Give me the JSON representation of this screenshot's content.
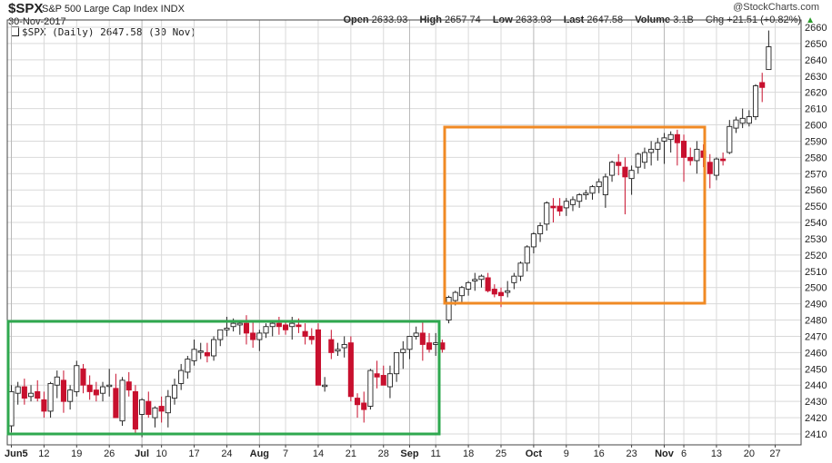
{
  "header": {
    "symbol": "$SPX",
    "name": "S&P 500 Large Cap Index  INDX",
    "date": "30-Nov-2017",
    "brand": "@StockCharts.com",
    "open_label": "Open",
    "open": "2633.93",
    "high_label": "High",
    "high": "2657.74",
    "low_label": "Low",
    "low": "2633.93",
    "last_label": "Last",
    "last": "2647.58",
    "volume_label": "Volume",
    "volume": "3.1B",
    "change": "Chg +21.51 (+0.82%)",
    "change_icon": "triangle-up-icon",
    "change_color": "#2a9d2a"
  },
  "legend": {
    "text": "$SPX (Daily) 2647.58 (30 Nov)",
    "icon": "candlestick-icon"
  },
  "colors": {
    "up": "#ffffff",
    "up_border": "#222222",
    "down": "#c8102e",
    "grid": "#d9d9d9",
    "green_box": "#2fa84f",
    "orange_box": "#f08a24"
  },
  "chart_data": {
    "type": "candlestick",
    "ylim": [
      2405,
      2665
    ],
    "y_ticks": [
      2410,
      2420,
      2430,
      2440,
      2450,
      2460,
      2470,
      2480,
      2490,
      2500,
      2510,
      2520,
      2530,
      2540,
      2550,
      2560,
      2570,
      2580,
      2590,
      2600,
      2610,
      2620,
      2630,
      2640,
      2650,
      2660
    ],
    "x_tick_labels": [
      {
        "label": "Jun5",
        "idx": 0,
        "major": true
      },
      {
        "label": "12",
        "idx": 5
      },
      {
        "label": "19",
        "idx": 10
      },
      {
        "label": "26",
        "idx": 15
      },
      {
        "label": "Jul",
        "idx": 20,
        "major": true
      },
      {
        "label": "10",
        "idx": 23
      },
      {
        "label": "17",
        "idx": 28
      },
      {
        "label": "24",
        "idx": 33
      },
      {
        "label": "Aug",
        "idx": 38,
        "major": true
      },
      {
        "label": "7",
        "idx": 42
      },
      {
        "label": "14",
        "idx": 47
      },
      {
        "label": "21",
        "idx": 52
      },
      {
        "label": "28",
        "idx": 57
      },
      {
        "label": "Sep",
        "idx": 61,
        "major": true
      },
      {
        "label": "11",
        "idx": 65
      },
      {
        "label": "18",
        "idx": 70
      },
      {
        "label": "25",
        "idx": 75
      },
      {
        "label": "Oct",
        "idx": 80,
        "major": true
      },
      {
        "label": "9",
        "idx": 85
      },
      {
        "label": "16",
        "idx": 90
      },
      {
        "label": "23",
        "idx": 95
      },
      {
        "label": "Nov",
        "idx": 100,
        "major": true
      },
      {
        "label": "6",
        "idx": 103
      },
      {
        "label": "13",
        "idx": 108
      },
      {
        "label": "20",
        "idx": 113
      },
      {
        "label": "27",
        "idx": 117
      }
    ],
    "ohlc": [
      [
        2415,
        2440,
        2411,
        2436
      ],
      [
        2435,
        2442,
        2428,
        2439
      ],
      [
        2439,
        2444,
        2428,
        2432
      ],
      [
        2433,
        2440,
        2430,
        2435
      ],
      [
        2436,
        2443,
        2430,
        2432
      ],
      [
        2431,
        2436,
        2420,
        2424
      ],
      [
        2424,
        2442,
        2420,
        2441
      ],
      [
        2440,
        2449,
        2432,
        2445
      ],
      [
        2443,
        2449,
        2423,
        2430
      ],
      [
        2430,
        2440,
        2425,
        2437
      ],
      [
        2436,
        2455,
        2433,
        2452
      ],
      [
        2450,
        2453,
        2435,
        2440
      ],
      [
        2440,
        2446,
        2431,
        2436
      ],
      [
        2437,
        2442,
        2430,
        2434
      ],
      [
        2435,
        2442,
        2430,
        2439
      ],
      [
        2440,
        2450,
        2433,
        2440
      ],
      [
        2438,
        2447,
        2420,
        2420
      ],
      [
        2418,
        2445,
        2415,
        2443
      ],
      [
        2442,
        2448,
        2433,
        2437
      ],
      [
        2436,
        2440,
        2410,
        2413
      ],
      [
        2422,
        2432,
        2408,
        2431
      ],
      [
        2430,
        2436,
        2420,
        2422
      ],
      [
        2420,
        2427,
        2414,
        2426
      ],
      [
        2427,
        2433,
        2417,
        2424
      ],
      [
        2423,
        2437,
        2414,
        2433
      ],
      [
        2432,
        2444,
        2428,
        2440
      ],
      [
        2441,
        2453,
        2437,
        2449
      ],
      [
        2448,
        2458,
        2444,
        2456
      ],
      [
        2455,
        2468,
        2452,
        2462
      ],
      [
        2461,
        2466,
        2456,
        2461
      ],
      [
        2460,
        2466,
        2454,
        2458
      ],
      [
        2458,
        2470,
        2455,
        2468
      ],
      [
        2468,
        2474,
        2464,
        2474
      ],
      [
        2474,
        2482,
        2470,
        2475
      ],
      [
        2476,
        2481,
        2473,
        2478
      ],
      [
        2477,
        2480,
        2471,
        2478
      ],
      [
        2478,
        2483,
        2465,
        2472
      ],
      [
        2472,
        2480,
        2463,
        2468
      ],
      [
        2468,
        2474,
        2461,
        2472
      ],
      [
        2472,
        2478,
        2469,
        2476
      ],
      [
        2476,
        2480,
        2470,
        2478
      ],
      [
        2478,
        2482,
        2471,
        2476
      ],
      [
        2477,
        2480,
        2471,
        2474
      ],
      [
        2476,
        2482,
        2468,
        2478
      ],
      [
        2477,
        2481,
        2472,
        2476
      ],
      [
        2473,
        2478,
        2465,
        2470
      ],
      [
        2470,
        2475,
        2465,
        2468
      ],
      [
        2474,
        2478,
        2440,
        2440
      ],
      [
        2440,
        2445,
        2436,
        2440
      ],
      [
        2468,
        2474,
        2456,
        2460
      ],
      [
        2461,
        2466,
        2458,
        2462
      ],
      [
        2463,
        2470,
        2457,
        2465
      ],
      [
        2466,
        2470,
        2430,
        2433
      ],
      [
        2432,
        2435,
        2420,
        2428
      ],
      [
        2429,
        2436,
        2417,
        2425
      ],
      [
        2427,
        2450,
        2425,
        2449
      ],
      [
        2447,
        2455,
        2438,
        2445
      ],
      [
        2446,
        2452,
        2440,
        2440
      ],
      [
        2439,
        2452,
        2432,
        2447
      ],
      [
        2447,
        2460,
        2442,
        2460
      ],
      [
        2460,
        2467,
        2450,
        2462
      ],
      [
        2462,
        2469,
        2456,
        2470
      ],
      [
        2470,
        2476,
        2468,
        2472
      ],
      [
        2472,
        2480,
        2455,
        2465
      ],
      [
        2466,
        2472,
        2460,
        2462
      ],
      [
        2465,
        2472,
        2458,
        2466
      ],
      [
        2466,
        2468,
        2460,
        2462
      ],
      [
        2480,
        2495,
        2478,
        2494
      ],
      [
        2492,
        2498,
        2489,
        2497
      ],
      [
        2495,
        2501,
        2491,
        2500
      ],
      [
        2499,
        2504,
        2495,
        2503
      ],
      [
        2504,
        2509,
        2498,
        2505
      ],
      [
        2505,
        2508,
        2500,
        2507
      ],
      [
        2506,
        2509,
        2497,
        2498
      ],
      [
        2499,
        2502,
        2494,
        2496
      ],
      [
        2497,
        2500,
        2488,
        2495
      ],
      [
        2497,
        2504,
        2494,
        2498
      ],
      [
        2503,
        2509,
        2499,
        2507
      ],
      [
        2507,
        2516,
        2504,
        2515
      ],
      [
        2515,
        2526,
        2510,
        2525
      ],
      [
        2525,
        2534,
        2521,
        2533
      ],
      [
        2533,
        2540,
        2528,
        2538
      ],
      [
        2539,
        2553,
        2535,
        2552
      ],
      [
        2550,
        2555,
        2540,
        2549
      ],
      [
        2550,
        2555,
        2544,
        2547
      ],
      [
        2549,
        2555,
        2544,
        2553
      ],
      [
        2551,
        2556,
        2547,
        2554
      ],
      [
        2553,
        2558,
        2549,
        2557
      ],
      [
        2557,
        2560,
        2554,
        2558
      ],
      [
        2558,
        2563,
        2554,
        2562
      ],
      [
        2562,
        2567,
        2558,
        2565
      ],
      [
        2557,
        2570,
        2549,
        2568
      ],
      [
        2569,
        2578,
        2565,
        2577
      ],
      [
        2577,
        2582,
        2569,
        2575
      ],
      [
        2574,
        2580,
        2545,
        2568
      ],
      [
        2567,
        2575,
        2557,
        2572
      ],
      [
        2574,
        2583,
        2570,
        2582
      ],
      [
        2577,
        2586,
        2573,
        2583
      ],
      [
        2583,
        2590,
        2575,
        2585
      ],
      [
        2585,
        2592,
        2578,
        2589
      ],
      [
        2590,
        2595,
        2576,
        2592
      ],
      [
        2591,
        2596,
        2583,
        2594
      ],
      [
        2594,
        2597,
        2575,
        2589
      ],
      [
        2590,
        2594,
        2565,
        2580
      ],
      [
        2580,
        2586,
        2575,
        2578
      ],
      [
        2578,
        2590,
        2570,
        2585
      ],
      [
        2584,
        2588,
        2574,
        2580
      ],
      [
        2577,
        2582,
        2561,
        2570
      ],
      [
        2569,
        2580,
        2566,
        2579
      ],
      [
        2579,
        2583,
        2575,
        2578
      ],
      [
        2583,
        2603,
        2582,
        2599
      ],
      [
        2598,
        2605,
        2595,
        2603
      ],
      [
        2601,
        2610,
        2598,
        2604
      ],
      [
        2601,
        2609,
        2599,
        2605
      ],
      [
        2605,
        2625,
        2603,
        2624
      ],
      [
        2626,
        2632,
        2614,
        2623
      ],
      [
        2634,
        2658,
        2634,
        2648
      ]
    ]
  }
}
